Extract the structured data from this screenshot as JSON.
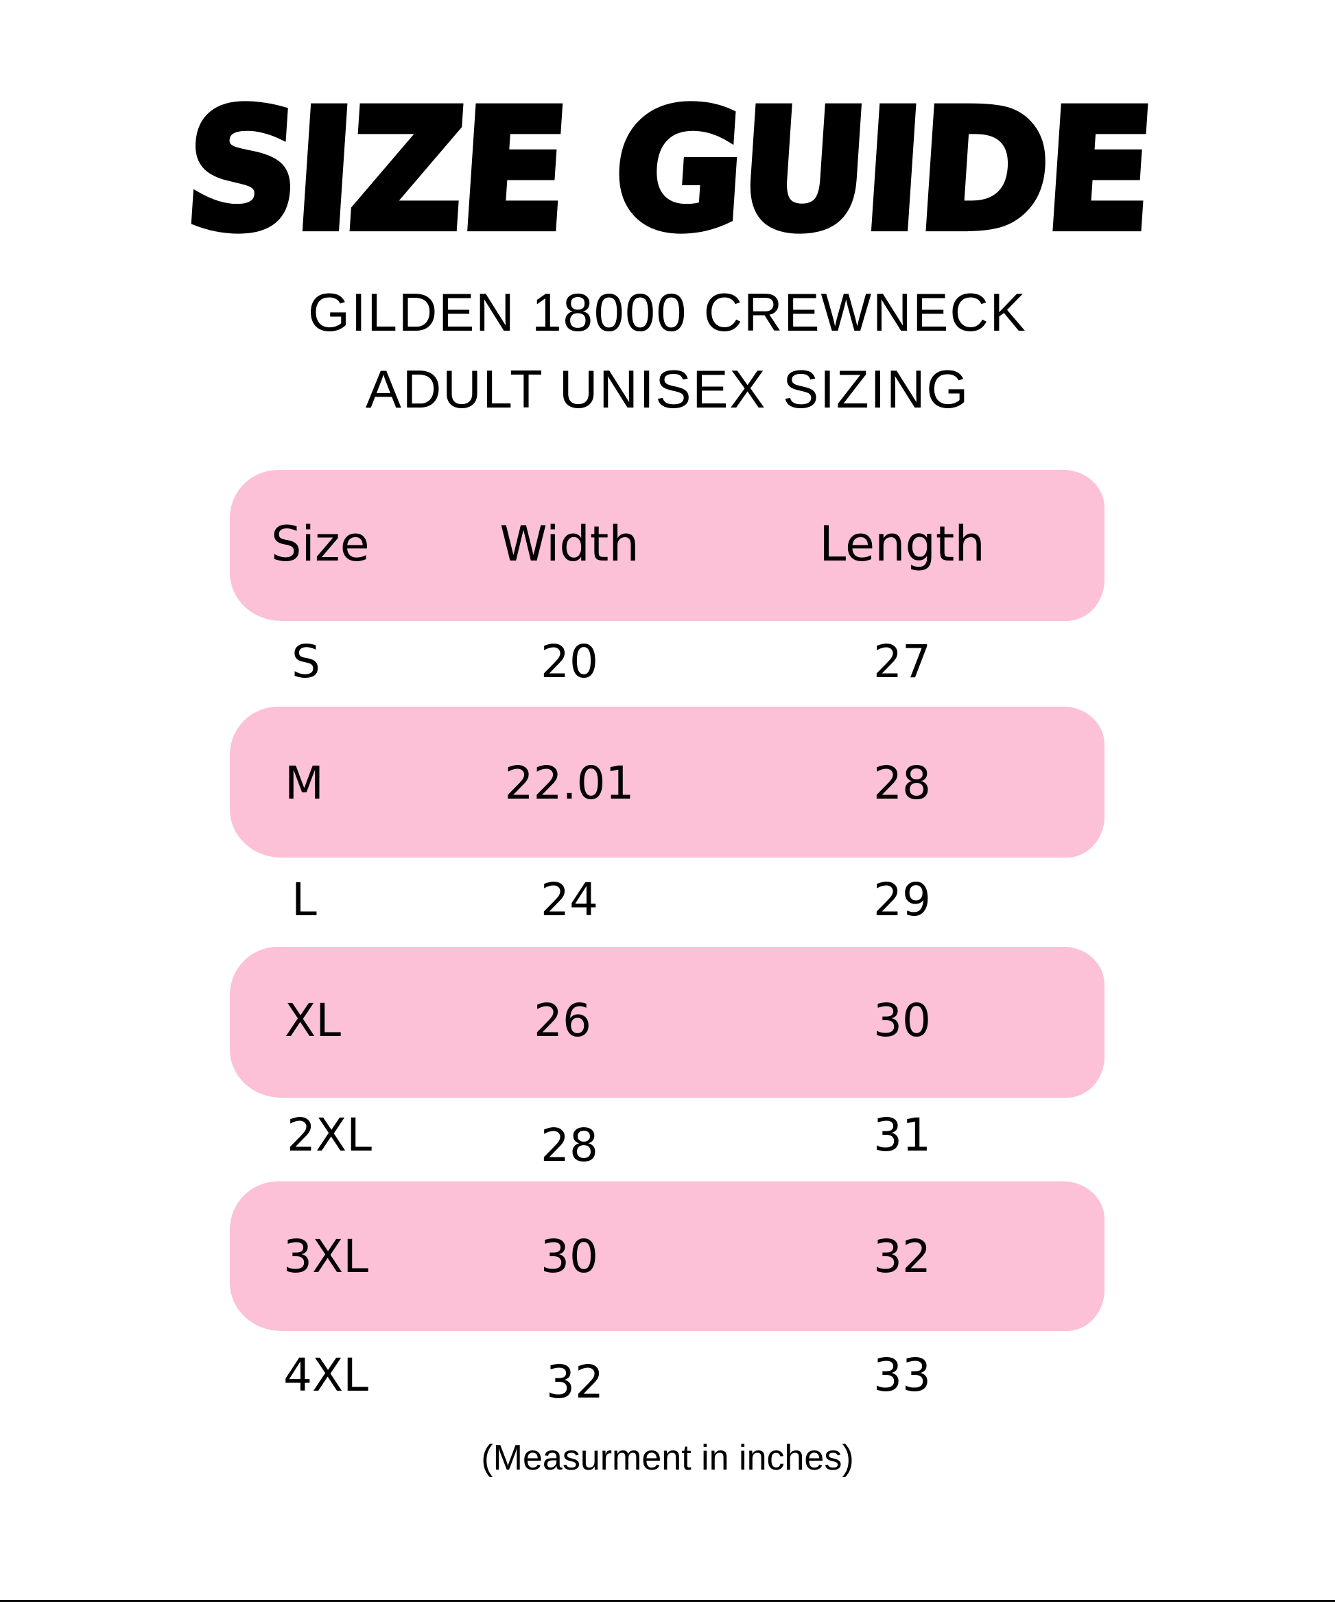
{
  "title": "SIZE GUIDE",
  "subtitle_line1": "GILDEN 18000 CREWNECK",
  "subtitle_line2": "ADULT UNISEX SIZING",
  "colors": {
    "band": "#fcc0d7",
    "text": "#000000",
    "background": "#ffffff"
  },
  "table": {
    "headers": [
      "Size",
      "Width",
      "Length"
    ],
    "rows": [
      {
        "size": "S",
        "width": "20",
        "length": "27"
      },
      {
        "size": "M",
        "width": "22.01",
        "length": "28"
      },
      {
        "size": "L",
        "width": "24",
        "length": "29"
      },
      {
        "size": "XL",
        "width": "26",
        "length": "30"
      },
      {
        "size": "2XL",
        "width": "28",
        "length": "31"
      },
      {
        "size": "3XL",
        "width": "30",
        "length": "32"
      },
      {
        "size": "4XL",
        "width": "32",
        "length": "33"
      }
    ]
  },
  "footnote": "(Measurment in inches)"
}
